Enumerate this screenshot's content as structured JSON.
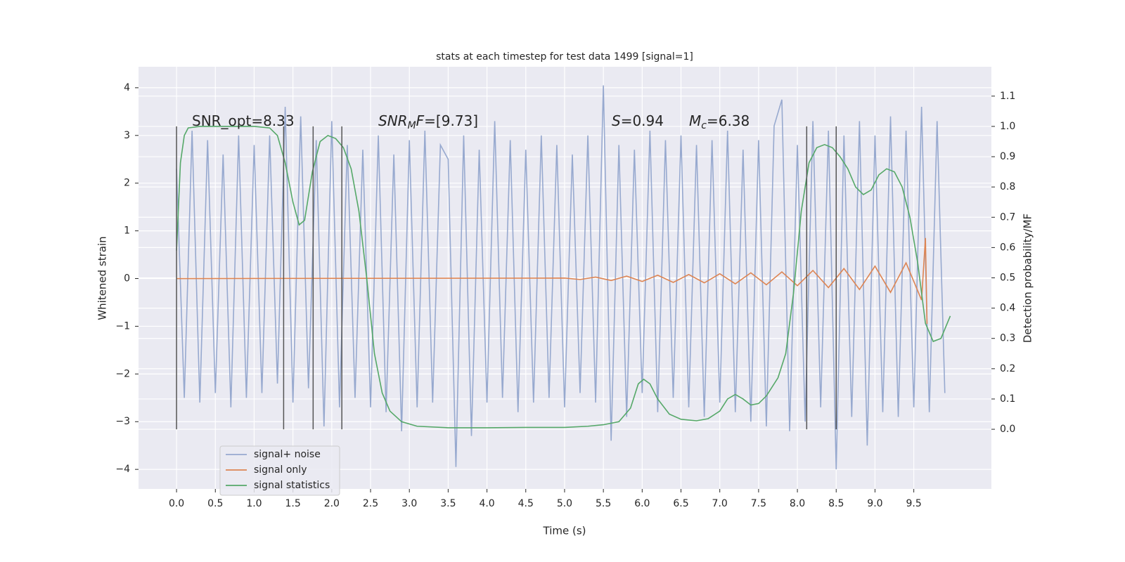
{
  "chart_data": {
    "type": "line",
    "title": "stats at each timestep for test data 1499 [signal=1]",
    "x_label": "Time (s)",
    "y_label": "Whitened strain",
    "y2_label": "Detection probability/MF",
    "background": "#eaeaf2",
    "grid": true,
    "legend": "lower left",
    "xlim": [
      -0.49,
      10.5
    ],
    "ylim": [
      -4.41,
      4.44
    ],
    "y2lim": [
      -0.197,
      1.197
    ],
    "xticks": [
      {
        "value": 0,
        "label": "0.0"
      },
      {
        "value": 0.5,
        "label": "0.5"
      },
      {
        "value": 1,
        "label": "1.0"
      },
      {
        "value": 1.5,
        "label": "1.5"
      },
      {
        "value": 2,
        "label": "2.0"
      },
      {
        "value": 2.5,
        "label": "2.5"
      },
      {
        "value": 3,
        "label": "3.0"
      },
      {
        "value": 3.5,
        "label": "3.5"
      },
      {
        "value": 4,
        "label": "4.0"
      },
      {
        "value": 4.5,
        "label": "4.5"
      },
      {
        "value": 5,
        "label": "5.0"
      },
      {
        "value": 5.5,
        "label": "5.5"
      },
      {
        "value": 6,
        "label": "6.0"
      },
      {
        "value": 6.5,
        "label": "6.5"
      },
      {
        "value": 7,
        "label": "7.0"
      },
      {
        "value": 7.5,
        "label": "7.5"
      },
      {
        "value": 8,
        "label": "8.0"
      },
      {
        "value": 8.5,
        "label": "8.5"
      },
      {
        "value": 9,
        "label": "9.0"
      },
      {
        "value": 9.5,
        "label": "9.5"
      }
    ],
    "yticks": [
      {
        "value": -4,
        "label": "−4"
      },
      {
        "value": -3,
        "label": "−3"
      },
      {
        "value": -2,
        "label": "−2"
      },
      {
        "value": -1,
        "label": "−1"
      },
      0,
      1,
      2,
      3,
      4
    ],
    "y2ticks": [
      {
        "value": 0,
        "label": "0.0"
      },
      {
        "value": 0.1,
        "label": "0.1"
      },
      {
        "value": 0.2,
        "label": "0.2"
      },
      {
        "value": 0.3,
        "label": "0.3"
      },
      {
        "value": 0.4,
        "label": "0.4"
      },
      {
        "value": 0.5,
        "label": "0.5"
      },
      {
        "value": 0.6,
        "label": "0.6"
      },
      {
        "value": 0.7,
        "label": "0.7"
      },
      {
        "value": 0.8,
        "label": "0.8"
      },
      {
        "value": 0.9,
        "label": "0.9"
      },
      {
        "value": 1,
        "label": "1.0"
      },
      {
        "value": 1.1,
        "label": "1.1"
      }
    ],
    "vlines": [
      0,
      1.38,
      1.76,
      2.13,
      8.12,
      8.5
    ],
    "vlines_y2range": [
      0,
      1
    ],
    "vlines_color": "#555555",
    "annotations": [
      {
        "segments": [
          {
            "text": "SNR_opt=8.33"
          }
        ]
      },
      {
        "segments": [
          {
            "text": "SNR",
            "italic": true
          },
          {
            "text": "M",
            "italic": true,
            "sub": true
          },
          {
            "text": "F",
            "italic": true
          },
          {
            "text": "=[9.73]"
          }
        ]
      },
      {
        "segments": [
          {
            "text": "S",
            "italic": true
          },
          {
            "text": "=0.94"
          }
        ]
      },
      {
        "segments": [
          {
            "text": "M",
            "italic": true
          },
          {
            "text": "c",
            "italic": true,
            "sub": true
          },
          {
            "text": "=6.38"
          }
        ]
      }
    ],
    "series": [
      {
        "name": "signal+ noise",
        "color": "#97a9cf",
        "x": [
          0.0,
          0.1,
          0.2,
          0.3,
          0.4,
          0.5,
          0.6,
          0.7,
          0.8,
          0.9,
          1.0,
          1.1,
          1.2,
          1.3,
          1.4,
          1.5,
          1.6,
          1.7,
          1.8,
          1.9,
          2.0,
          2.1,
          2.2,
          2.3,
          2.4,
          2.5,
          2.6,
          2.7,
          2.8,
          2.9,
          3.0,
          3.1,
          3.2,
          3.3,
          3.4,
          3.5,
          3.6,
          3.7,
          3.8,
          3.9,
          4.0,
          4.1,
          4.2,
          4.3,
          4.4,
          4.5,
          4.6,
          4.7,
          4.8,
          4.9,
          5.0,
          5.1,
          5.2,
          5.3,
          5.4,
          5.5,
          5.6,
          5.7,
          5.8,
          5.9,
          6.0,
          6.1,
          6.2,
          6.3,
          6.4,
          6.5,
          6.6,
          6.7,
          6.8,
          6.9,
          7.0,
          7.1,
          7.2,
          7.3,
          7.4,
          7.5,
          7.6,
          7.7,
          7.8,
          7.9,
          8.0,
          8.1,
          8.2,
          8.3,
          8.4,
          8.5,
          8.6,
          8.7,
          8.8,
          8.9,
          9.0,
          9.1,
          9.2,
          9.3,
          9.4,
          9.5,
          9.6,
          9.7,
          9.8,
          9.9
        ],
        "values": [
          2.3,
          -2.5,
          3.1,
          -2.6,
          2.9,
          -2.4,
          2.6,
          -2.7,
          3.0,
          -2.5,
          2.8,
          -2.4,
          3.0,
          -2.2,
          3.6,
          -2.6,
          3.4,
          -2.3,
          2.9,
          -3.1,
          3.3,
          -2.7,
          2.8,
          -2.5,
          2.7,
          -2.7,
          3.0,
          -2.8,
          2.6,
          -3.2,
          2.9,
          -2.7,
          3.1,
          -2.6,
          2.8,
          2.5,
          -3.95,
          3.0,
          -3.3,
          2.7,
          -2.6,
          3.3,
          -2.5,
          2.9,
          -2.8,
          2.7,
          -2.6,
          3.0,
          -2.5,
          2.8,
          -2.7,
          2.6,
          -2.4,
          3.0,
          -2.6,
          4.05,
          -3.4,
          2.8,
          -2.9,
          2.7,
          -2.4,
          3.1,
          -2.8,
          2.9,
          -2.5,
          3.0,
          -2.7,
          2.8,
          -2.9,
          2.9,
          -2.6,
          3.1,
          -2.8,
          2.7,
          -3.0,
          2.9,
          -3.1,
          3.2,
          3.75,
          -3.2,
          2.8,
          -3.0,
          3.3,
          -2.7,
          3.1,
          -4.0,
          3.0,
          -2.9,
          3.3,
          -3.5,
          3.0,
          -2.8,
          3.4,
          -2.9,
          3.1,
          -2.7,
          3.6,
          -2.8,
          3.3,
          -2.4
        ]
      },
      {
        "name": "signal only",
        "color": "#dd8452",
        "x": [
          0.0,
          5.0,
          5.2,
          5.4,
          5.6,
          5.8,
          6.0,
          6.2,
          6.4,
          6.6,
          6.8,
          7.0,
          7.2,
          7.4,
          7.6,
          7.8,
          8.0,
          8.2,
          8.4,
          8.6,
          8.8,
          9.0,
          9.2,
          9.4,
          9.6,
          9.65,
          9.67
        ],
        "values": [
          0,
          0.01,
          -0.02,
          0.03,
          -0.04,
          0.05,
          -0.06,
          0.07,
          -0.08,
          0.085,
          -0.09,
          0.1,
          -0.11,
          0.12,
          -0.13,
          0.14,
          -0.15,
          0.17,
          -0.19,
          0.21,
          -0.23,
          0.26,
          -0.29,
          0.33,
          -0.45,
          0.85,
          -0.95
        ]
      },
      {
        "name": "signal statistics",
        "color": "#55a868",
        "axis": "y2",
        "x": [
          0.0,
          0.05,
          0.1,
          0.15,
          0.3,
          0.5,
          1.0,
          1.2,
          1.3,
          1.4,
          1.5,
          1.58,
          1.65,
          1.75,
          1.85,
          1.95,
          2.05,
          2.15,
          2.25,
          2.35,
          2.45,
          2.55,
          2.65,
          2.75,
          2.9,
          3.1,
          3.5,
          4.0,
          4.5,
          5.0,
          5.3,
          5.5,
          5.7,
          5.85,
          5.95,
          6.02,
          6.1,
          6.2,
          6.35,
          6.5,
          6.7,
          6.85,
          7.0,
          7.1,
          7.2,
          7.3,
          7.4,
          7.5,
          7.6,
          7.75,
          7.85,
          7.95,
          8.05,
          8.15,
          8.25,
          8.35,
          8.45,
          8.55,
          8.65,
          8.75,
          8.85,
          8.95,
          9.05,
          9.15,
          9.25,
          9.35,
          9.45,
          9.55,
          9.65,
          9.75,
          9.85,
          9.97
        ],
        "values": [
          0.59,
          0.88,
          0.97,
          0.995,
          1.0,
          1.0,
          1.0,
          0.995,
          0.97,
          0.88,
          0.75,
          0.675,
          0.69,
          0.85,
          0.95,
          0.97,
          0.96,
          0.93,
          0.86,
          0.72,
          0.5,
          0.25,
          0.12,
          0.06,
          0.025,
          0.01,
          0.005,
          0.005,
          0.006,
          0.006,
          0.01,
          0.015,
          0.025,
          0.07,
          0.15,
          0.165,
          0.15,
          0.1,
          0.05,
          0.033,
          0.028,
          0.035,
          0.06,
          0.1,
          0.115,
          0.1,
          0.08,
          0.085,
          0.11,
          0.17,
          0.25,
          0.45,
          0.72,
          0.88,
          0.93,
          0.94,
          0.93,
          0.9,
          0.86,
          0.8,
          0.775,
          0.79,
          0.84,
          0.86,
          0.85,
          0.8,
          0.7,
          0.55,
          0.35,
          0.29,
          0.3,
          0.374
        ]
      }
    ]
  }
}
